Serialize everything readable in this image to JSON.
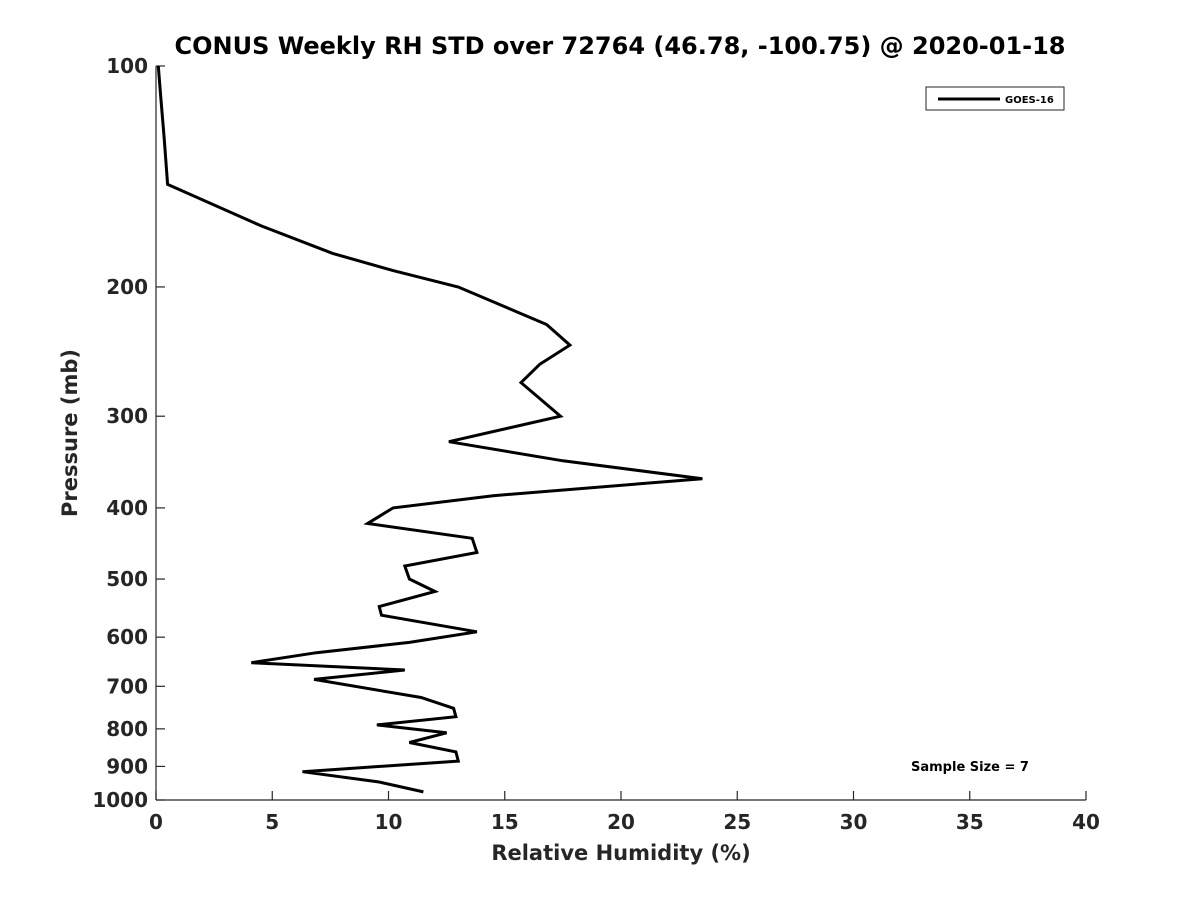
{
  "chart_data": {
    "type": "line",
    "title": "CONUS Weekly RH STD over 72764 (46.78, -100.75) @ 2020-01-18",
    "xlabel": "Relative Humidity (%)",
    "ylabel": "Pressure (mb)",
    "xlim": [
      0,
      40
    ],
    "ylim": [
      100,
      1000
    ],
    "y_scale": "log",
    "y_reversed": true,
    "x_ticks": [
      0,
      5,
      10,
      15,
      20,
      25,
      30,
      35,
      40
    ],
    "y_ticks": [
      100,
      200,
      300,
      400,
      500,
      600,
      700,
      800,
      900,
      1000
    ],
    "grid": false,
    "legend_position": "top-right",
    "series": [
      {
        "name": "GOES-16",
        "color": "#000000",
        "x": [
          0.1,
          0.2,
          0.35,
          0.5,
          4.5,
          7.6,
          10.2,
          13.0,
          16.8,
          17.8,
          16.5,
          15.7,
          17.4,
          12.6,
          17.5,
          23.5,
          14.5,
          10.2,
          9.1,
          13.6,
          13.8,
          10.7,
          10.9,
          12.0,
          9.6,
          9.7,
          13.8,
          10.9,
          6.9,
          4.1,
          10.7,
          6.8,
          11.4,
          12.8,
          12.9,
          9.5,
          12.5,
          10.9,
          12.9,
          13.0,
          6.3,
          9.6,
          11.5
        ],
        "y": [
          100,
          110,
          125,
          145,
          165,
          180,
          190,
          200,
          225,
          240,
          255,
          270,
          300,
          325,
          345,
          365,
          385,
          400,
          420,
          440,
          460,
          480,
          500,
          520,
          545,
          560,
          590,
          610,
          630,
          650,
          665,
          685,
          725,
          750,
          770,
          790,
          810,
          835,
          860,
          885,
          915,
          945,
          975
        ]
      }
    ],
    "annotations": [
      {
        "text": "Sample Size = 7"
      }
    ]
  }
}
